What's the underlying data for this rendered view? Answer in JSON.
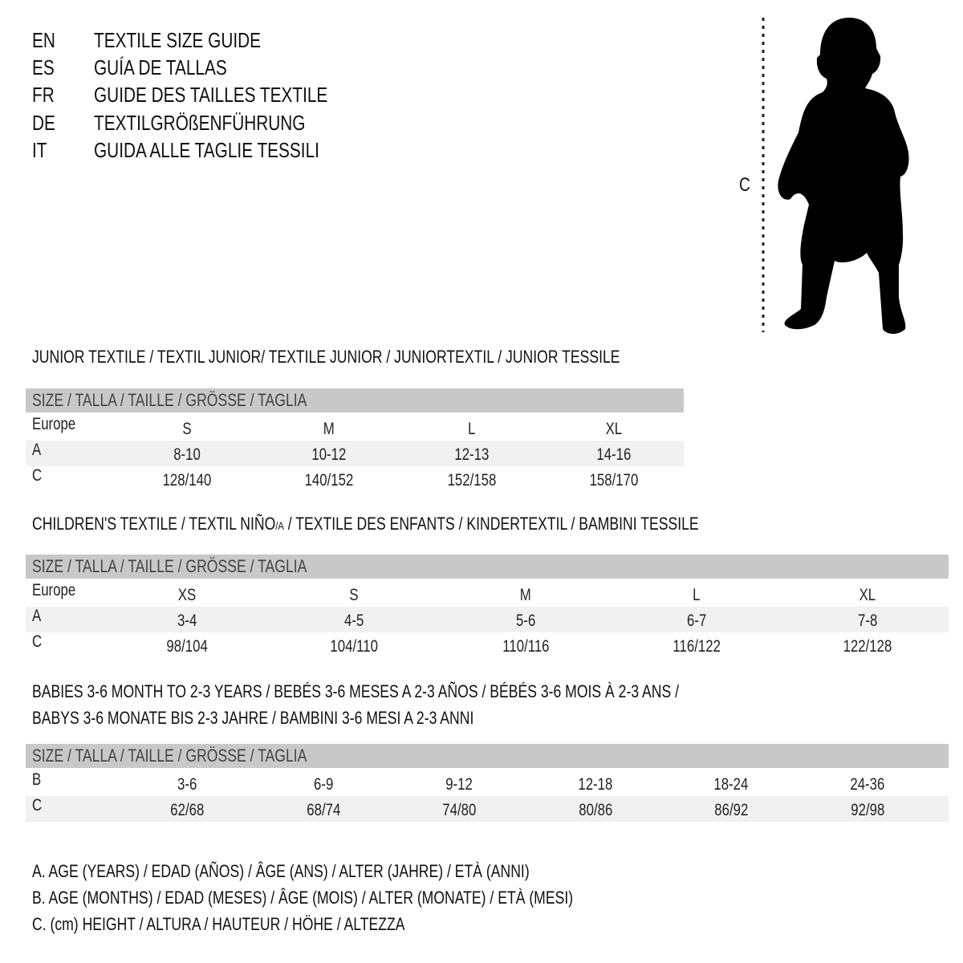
{
  "languages": [
    {
      "code": "EN",
      "title": "TEXTILE SIZE GUIDE"
    },
    {
      "code": "ES",
      "title": "GUÍA DE TALLAS"
    },
    {
      "code": "FR",
      "title": "GUIDE DES TAILLES TEXTILE"
    },
    {
      "code": "DE",
      "title": "TEXTILGRÖßENFÜHRUNG"
    },
    {
      "code": "IT",
      "title": "GUIDA ALLE TAGLIE TESSILI"
    }
  ],
  "figure": {
    "measure_label": "C",
    "icon": "child-silhouette"
  },
  "header_label": "SIZE / TALLA / TAILLE / GRÖSSE / TAGLIA",
  "colors": {
    "header_bg": "#c8c8c8",
    "stripe_bg": "#f1f1f1"
  },
  "junior": {
    "title": "JUNIOR TEXTILE / TEXTIL JUNIOR/ TEXTILE JUNIOR / JUNIORTEXTIL / JUNIOR TESSILE",
    "rows": [
      {
        "label": "Europe",
        "values": [
          "S",
          "M",
          "L",
          "XL"
        ]
      },
      {
        "label": "A",
        "values": [
          "8-10",
          "10-12",
          "12-13",
          "14-16"
        ]
      },
      {
        "label": "C",
        "values": [
          "128/140",
          "140/152",
          "152/158",
          "158/170"
        ]
      }
    ]
  },
  "children": {
    "title_a": "CHILDREN'S TEXTILE / TEXTIL NIÑO",
    "title_sub": "/A",
    "title_b": " / TEXTILE DES ENFANTS / KINDERTEXTIL / BAMBINI TESSILE",
    "rows": [
      {
        "label": "Europe",
        "values": [
          "XS",
          "S",
          "M",
          "L",
          "XL"
        ]
      },
      {
        "label": "A",
        "values": [
          "3-4",
          "4-5",
          "5-6",
          "6-7",
          "7-8"
        ]
      },
      {
        "label": "C",
        "values": [
          "98/104",
          "104/110",
          "110/116",
          "116/122",
          "122/128"
        ]
      }
    ]
  },
  "babies": {
    "title_line1": "BABIES 3-6 MONTH TO 2-3 YEARS / BEBÉS 3-6 MESES A 2-3 AÑOS / BÉBÉS 3-6 MOIS À 2-3 ANS /",
    "title_line2": "BABYS 3-6 MONATE BIS 2-3 JAHRE / BAMBINI 3-6 MESI A 2-3 ANNI",
    "rows": [
      {
        "label": "B",
        "values": [
          "3-6",
          "6-9",
          "9-12",
          "12-18",
          "18-24",
          "24-36"
        ]
      },
      {
        "label": "C",
        "values": [
          "62/68",
          "68/74",
          "74/80",
          "80/86",
          "86/92",
          "92/98"
        ]
      }
    ]
  },
  "legend": [
    "A. AGE (YEARS) / EDAD (AÑOS) / ÂGE (ANS) / ALTER (JAHRE) / ETÀ (ANNI)",
    "B. AGE (MONTHS) / EDAD (MESES) / ÂGE (MOIS) / ALTER (MONATE) / ETÀ (MESI)",
    "C. (cm) HEIGHT / ALTURA / HAUTEUR / HÖHE / ALTEZZA"
  ]
}
